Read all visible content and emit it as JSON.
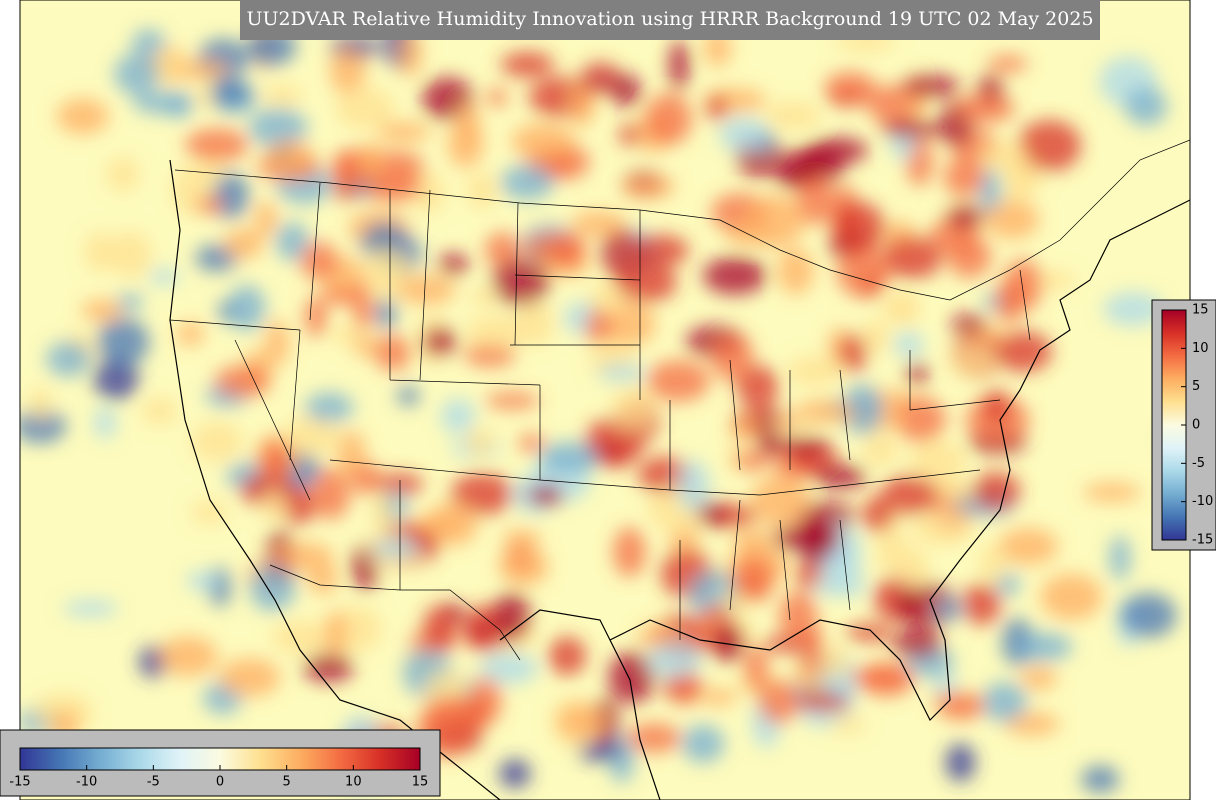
{
  "title": "UU2DVAR Relative Humidity Innovation using HRRR Background 19 UTC 02 May 2025",
  "colorbars": [
    {
      "orientation": "vertical",
      "lim": [
        -15,
        15
      ],
      "ticks": [
        -15,
        -10,
        -5,
        0,
        5,
        10,
        15
      ]
    },
    {
      "orientation": "horizontal",
      "lim": [
        -15,
        15
      ],
      "ticks": [
        -15,
        -10,
        -5,
        0,
        5,
        10,
        15
      ]
    }
  ],
  "colors": [
    "#313695",
    "#4575b4",
    "#74add1",
    "#abd9e9",
    "#e0f3f8",
    "#fbfbe0",
    "#fee090",
    "#fdae61",
    "#f46d43",
    "#d73027",
    "#a50026"
  ]
}
